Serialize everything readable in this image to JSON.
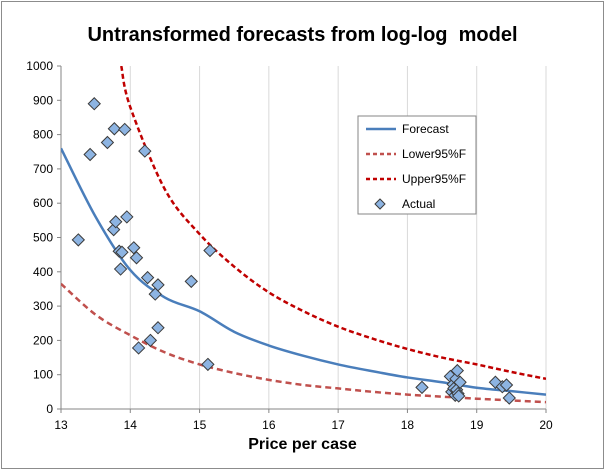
{
  "chart_data": {
    "type": "line",
    "title": "Untransformed forecasts from log-log  model",
    "xlabel": "Price per case",
    "ylabel": "",
    "xlim": [
      13,
      20
    ],
    "ylim": [
      0,
      1000
    ],
    "x_ticks": [
      13,
      14,
      15,
      16,
      17,
      18,
      19,
      20
    ],
    "y_ticks": [
      0,
      100,
      200,
      300,
      400,
      500,
      600,
      700,
      800,
      900,
      1000
    ],
    "grid": "vertical",
    "legend_position": "right",
    "series": [
      {
        "name": "Forecast",
        "style": "solid",
        "color": "#4a7ebb",
        "x": [
          13.0,
          13.5,
          14.0,
          14.5,
          15.0,
          15.5,
          16.0,
          16.5,
          17.0,
          17.5,
          18.0,
          18.5,
          19.0,
          19.5,
          20.0
        ],
        "y": [
          760,
          560,
          405,
          325,
          285,
          225,
          185,
          155,
          130,
          110,
          92,
          78,
          62,
          52,
          42
        ]
      },
      {
        "name": "Lower95%F",
        "style": "dashed",
        "color": "#c0504d",
        "x": [
          13.0,
          13.5,
          14.0,
          14.5,
          15.0,
          15.5,
          16.0,
          16.5,
          17.0,
          17.5,
          18.0,
          18.5,
          19.0,
          19.5,
          20.0
        ],
        "y": [
          365,
          275,
          215,
          165,
          130,
          105,
          85,
          70,
          60,
          50,
          42,
          36,
          30,
          25,
          20
        ]
      },
      {
        "name": "Upper95%F",
        "style": "dashed",
        "color": "#c00000",
        "x": [
          13.87,
          14.0,
          14.5,
          15.0,
          15.5,
          16.0,
          16.5,
          17.0,
          17.5,
          18.0,
          18.5,
          19.0,
          19.5,
          20.0
        ],
        "y": [
          1000,
          880,
          640,
          510,
          415,
          340,
          285,
          240,
          205,
          175,
          150,
          130,
          108,
          88
        ]
      },
      {
        "name": "Actual",
        "style": "markers",
        "color": "#8db4e2",
        "x": [
          13.25,
          13.42,
          13.48,
          13.67,
          13.76,
          13.77,
          13.79,
          13.84,
          13.86,
          13.88,
          13.92,
          13.95,
          14.05,
          14.09,
          14.12,
          14.21,
          14.25,
          14.29,
          14.36,
          14.4,
          14.4,
          14.88,
          15.12,
          15.15,
          18.21,
          18.62,
          18.64,
          18.66,
          18.67,
          18.69,
          18.7,
          18.71,
          18.72,
          18.73,
          18.74,
          18.76,
          19.27,
          19.37,
          19.43,
          19.47
        ],
        "y": [
          493,
          742,
          890,
          777,
          523,
          817,
          546,
          460,
          408,
          457,
          815,
          560,
          470,
          441,
          178,
          752,
          383,
          200,
          335,
          237,
          362,
          372,
          130,
          462,
          63,
          95,
          50,
          72,
          60,
          40,
          88,
          56,
          112,
          45,
          38,
          78,
          78,
          65,
          70,
          32
        ]
      }
    ]
  }
}
